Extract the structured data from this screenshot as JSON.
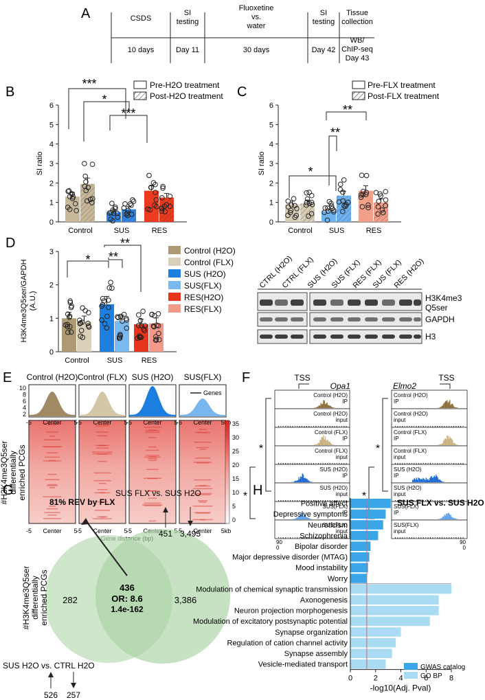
{
  "panels": {
    "A": "A",
    "B": "B",
    "C": "C",
    "D": "D",
    "E": "E",
    "F": "F",
    "G": "G",
    "H": "H"
  },
  "timeline": {
    "stages": [
      "CSDS",
      "SI testing",
      "Fluoxetine vs. water",
      "SI testing",
      "Tissue collection"
    ],
    "durations": [
      "10 days",
      "Day 11",
      "30 days",
      "Day 42",
      "WB/ ChIP-seq Day 43"
    ]
  },
  "panel_b": {
    "legend": [
      "Pre-H2O treatment",
      "Post-H2O treatment"
    ],
    "sig": [
      "***",
      "*",
      "***"
    ]
  },
  "panel_c": {
    "legend": [
      "Pre-FLX treatment",
      "Post-FLX treatment"
    ],
    "sig": [
      "**",
      "**",
      "*"
    ]
  },
  "panel_d": {
    "legend": [
      "Control (H2O)",
      "Control (FLX)",
      "SUS (H2O)",
      "SUS(FLX)",
      "RES(H2O)",
      "RES(FLX)"
    ],
    "sig": [
      "*",
      "**",
      "**"
    ],
    "blot_lanes": [
      "CTRL (H2O)",
      "CTRL (FLX)",
      "SUS (H2O)",
      "SUS (FLX)",
      "RES (FLX)",
      "SUS (FLX)",
      "RES (H2O)"
    ],
    "blot_rows": [
      "H3K4me3 Q5ser",
      "GAPDH",
      "H3"
    ]
  },
  "panel_e": {
    "conditions": [
      "Control (H2O)",
      "Control (FLX)",
      "SUS (H2O)",
      "SUS(FLX)"
    ],
    "legend": "Genes",
    "ylabel": "#H3K4me3Q5ser differentially enriched PCGs",
    "profile_ticks": [
      "10",
      "8",
      "6",
      "4",
      "2"
    ],
    "x_ticks": [
      "-5",
      "Center",
      "5"
    ],
    "x_last": "5kb",
    "xlabel": "Gene distance (bp)",
    "colorbar_ticks": [
      "35",
      "30",
      "25",
      "20",
      "15",
      "10",
      "5",
      "0"
    ],
    "colors": [
      "#a08a63",
      "#d4c7a6",
      "#1c7fe0",
      "#7ab6ee"
    ]
  },
  "panel_f": {
    "genes": [
      "Opa1",
      "Elmo2"
    ],
    "tss": "TSS",
    "tracks": [
      {
        "name": "Control (H2O)",
        "type": "IP"
      },
      {
        "name": "Control (H2O)",
        "type": "input"
      },
      {
        "name": "Control (FLX)",
        "type": "IP"
      },
      {
        "name": "Control (FLX)",
        "type": "input"
      },
      {
        "name": "SUS (H2O)",
        "type": "IP"
      },
      {
        "name": "SUS (H2O)",
        "type": "input"
      },
      {
        "name": "SUS(FLX)",
        "type": "IP"
      },
      {
        "name": "SUS(FLX)",
        "type": "input"
      }
    ],
    "scale_max": "90",
    "scale_min": "0",
    "sig": [
      "*",
      "*",
      "*",
      "*"
    ]
  },
  "panel_g": {
    "top_comparison": "SUS FLX vs. SUS H2O",
    "top_counts": [
      "451",
      "3,495"
    ],
    "bottom_comparison": "SUS H2O vs. CTRL H2O",
    "bottom_counts": [
      "526",
      "257"
    ],
    "rev_label": "81% REV by FLX",
    "left_only": "282",
    "overlap": "436",
    "odds_ratio": "OR: 8.6",
    "pvalue": "1.4e-162",
    "right_only": "3,386",
    "ylabel": "#H3K4me3Q5ser differentially enriched PCGs"
  },
  "chart_data": [
    {
      "type": "bar",
      "title": "B",
      "ylabel": "SI ratio",
      "ylim": [
        0,
        6
      ],
      "yticks": [
        "0",
        "1",
        "2",
        "3",
        "4",
        "5",
        "6"
      ],
      "categories": [
        "Control",
        "SUS",
        "RES"
      ],
      "series": [
        {
          "name": "Pre-H2O treatment",
          "values": [
            1.3,
            0.5,
            1.6
          ]
        },
        {
          "name": "Post-H2O treatment",
          "values": [
            1.95,
            0.65,
            1.25
          ]
        }
      ]
    },
    {
      "type": "bar",
      "title": "C",
      "ylabel": "SI ratio",
      "ylim": [
        0,
        6
      ],
      "yticks": [
        "0",
        "1",
        "2",
        "3",
        "4",
        "5",
        "6"
      ],
      "categories": [
        "Control",
        "SUS",
        "RES"
      ],
      "series": [
        {
          "name": "Pre-FLX treatment",
          "values": [
            0.9,
            0.55,
            1.6
          ]
        },
        {
          "name": "Post-FLX treatment",
          "values": [
            0.95,
            1.35,
            1.0
          ]
        }
      ]
    },
    {
      "type": "bar",
      "title": "D",
      "ylabel": "H3K4me3Q5ser/GAPDH (A.U.)",
      "ylim": [
        0,
        3
      ],
      "yticks": [
        "0",
        "1",
        "2",
        "3"
      ],
      "categories": [
        "Control",
        "SUS",
        "RES"
      ],
      "series": [
        {
          "name": "H2O",
          "values": [
            1.0,
            1.42,
            0.82
          ]
        },
        {
          "name": "FLX",
          "values": [
            0.9,
            0.92,
            0.85
          ]
        }
      ]
    },
    {
      "type": "bar",
      "title": "SUS FLX vs. SUS H2O",
      "orientation": "horizontal",
      "xlabel": "-log10(Adj. Pval)",
      "xlim": [
        0,
        8
      ],
      "xticks": [
        "0",
        "2",
        "4",
        "6",
        "8"
      ],
      "categories": [
        "Positive affect",
        "Depressive symptoms",
        "Neuroticism",
        "Schizophrenia",
        "Bipolar disorder",
        "Major depressive disorder (MTAG)",
        "Mood instability",
        "Worry",
        "Modulation of chemical synaptic transmission",
        "Axonogenesis",
        "Neuron projection morphogenesis",
        "Modulation of excitatory postsynaptic potential",
        "Synapse organization",
        "Regulation of cation channel activity",
        "Synapse assembly",
        "Vesicle-mediated transport"
      ],
      "values": [
        3.2,
        2.8,
        2.6,
        2.2,
        1.6,
        1.5,
        1.4,
        1.3,
        8.0,
        7.0,
        7.0,
        6.3,
        4.0,
        3.6,
        3.3,
        2.8
      ],
      "groups": [
        "GWAS catalog",
        "GWAS catalog",
        "GWAS catalog",
        "GWAS catalog",
        "GWAS catalog",
        "GWAS catalog",
        "GWAS catalog",
        "GWAS catalog",
        "GO BP",
        "GO BP",
        "GO BP",
        "GO BP",
        "GO BP",
        "GO BP",
        "GO BP",
        "GO BP"
      ],
      "legend": [
        "GWAS catalog",
        "GO BP"
      ],
      "threshold": 1.3,
      "colors": {
        "GWAS catalog": "#3aa6e8",
        "GO BP": "#a9dcf3"
      }
    }
  ]
}
